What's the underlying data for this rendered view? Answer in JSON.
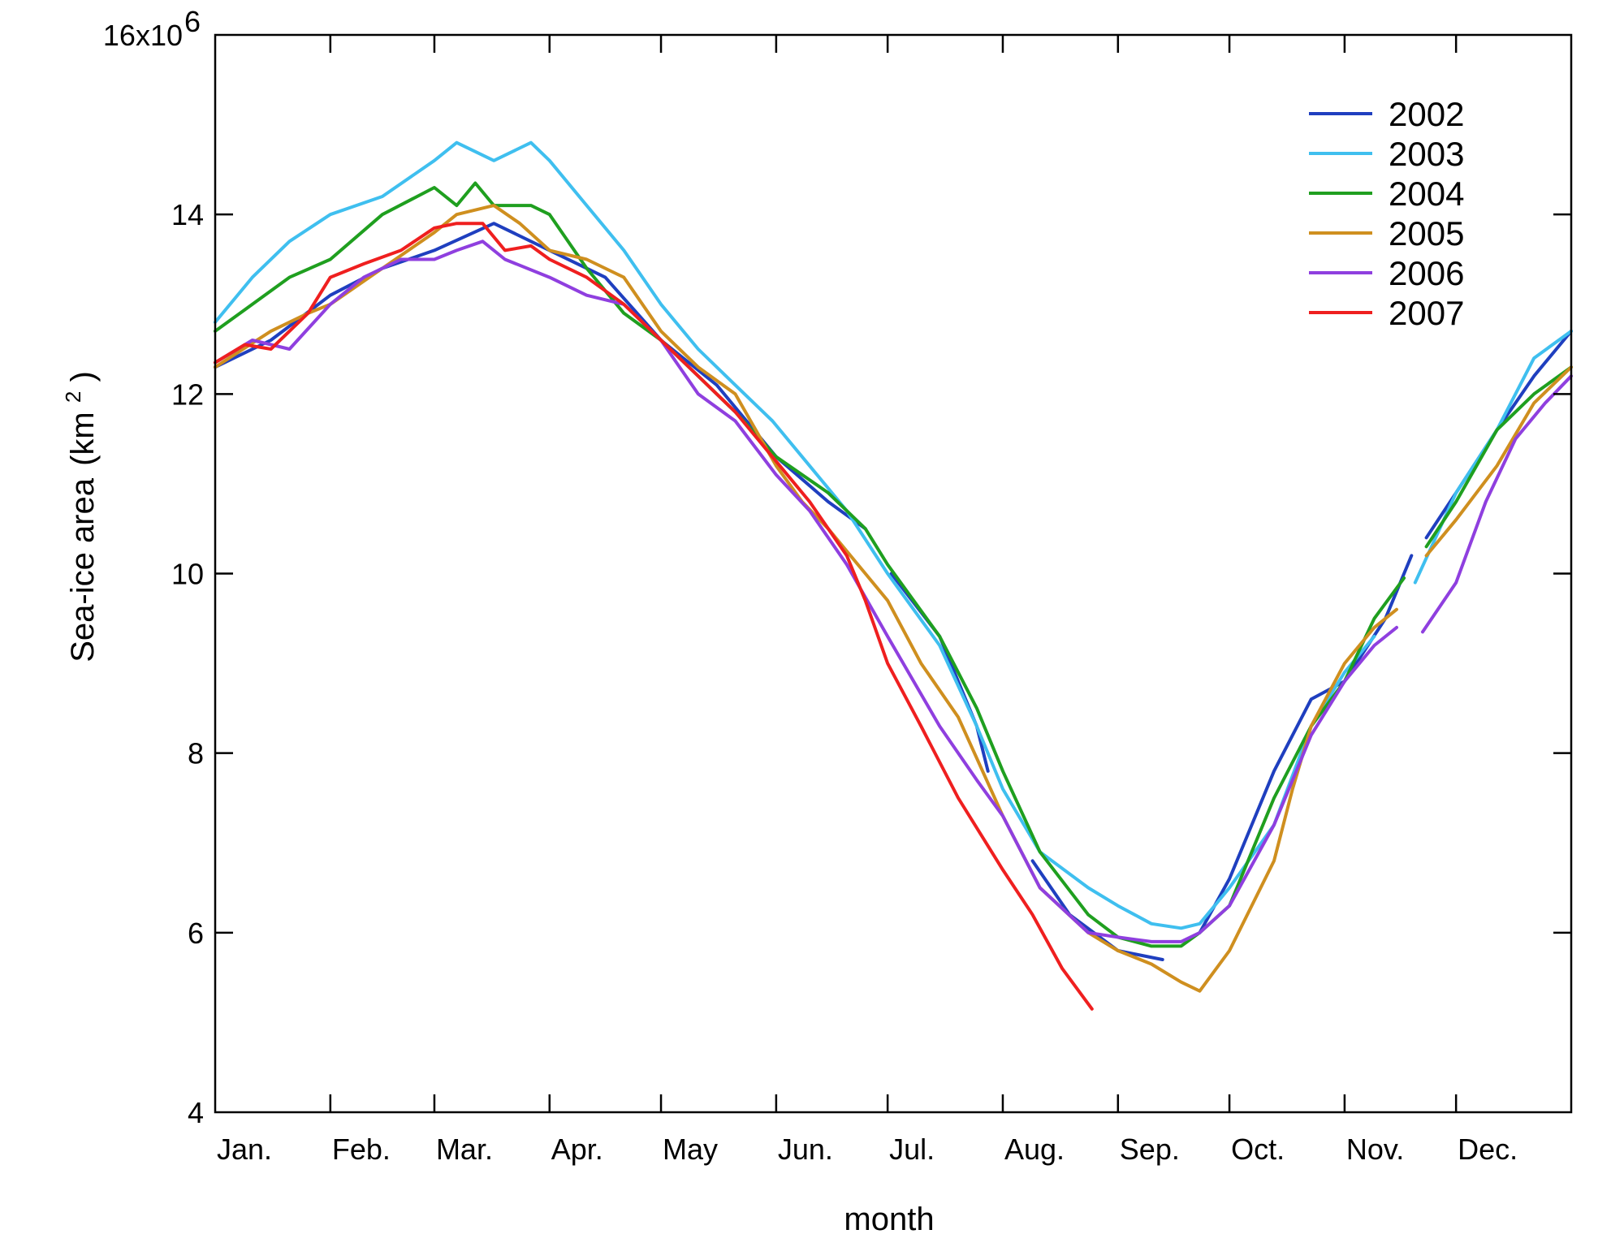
{
  "chart_data": {
    "type": "line",
    "xlabel": "month",
    "ylabel": "Sea-ice area",
    "ylabel_unit": "(km",
    "ylabel_unit_sup": "2",
    "ylabel_unit_close": ")",
    "x_tick_labels": [
      "Jan.",
      "Feb.",
      "Mar.",
      "Apr.",
      "May",
      "Jun.",
      "Jul.",
      "Aug.",
      "Sep.",
      "Oct.",
      "Nov.",
      "Dec."
    ],
    "x_domain_days": [
      0,
      365
    ],
    "x_tick_days": [
      0,
      31,
      59,
      90,
      120,
      151,
      181,
      212,
      243,
      273,
      304,
      334
    ],
    "ylim": [
      4000000,
      16000000
    ],
    "y_ticks": [
      4,
      6,
      8,
      10,
      12,
      14,
      16
    ],
    "y_tick_labels": [
      "4",
      "6",
      "8",
      "10",
      "12",
      "14",
      "16x10"
    ],
    "y_top_exponent": "6",
    "legend_position": "top-right",
    "series": [
      {
        "name": "2002",
        "color": "#1f3fbf",
        "segments": [
          [
            [
              0,
              12.3
            ],
            [
              15,
              12.6
            ],
            [
              31,
              13.1
            ],
            [
              45,
              13.4
            ],
            [
              59,
              13.6
            ],
            [
              75,
              13.9
            ],
            [
              90,
              13.6
            ],
            [
              105,
              13.3
            ],
            [
              120,
              12.6
            ],
            [
              135,
              12.1
            ],
            [
              151,
              11.3
            ],
            [
              165,
              10.8
            ],
            [
              175,
              10.5
            ]
          ],
          [
            [
              182,
              10.0
            ],
            [
              195,
              9.3
            ],
            [
              205,
              8.3
            ],
            [
              208,
              7.8
            ]
          ],
          [
            [
              220,
              6.8
            ],
            [
              230,
              6.2
            ],
            [
              243,
              5.8
            ],
            [
              255,
              5.7
            ]
          ],
          [
            [
              265,
              6.0
            ],
            [
              273,
              6.6
            ],
            [
              285,
              7.8
            ],
            [
              295,
              8.6
            ],
            [
              304,
              8.8
            ],
            [
              315,
              9.5
            ],
            [
              322,
              10.2
            ]
          ],
          [
            [
              326,
              10.4
            ],
            [
              334,
              10.9
            ],
            [
              345,
              11.6
            ],
            [
              355,
              12.2
            ],
            [
              365,
              12.7
            ]
          ]
        ]
      },
      {
        "name": "2003",
        "color": "#3fbfef",
        "segments": [
          [
            [
              0,
              12.8
            ],
            [
              10,
              13.3
            ],
            [
              20,
              13.7
            ],
            [
              31,
              14.0
            ],
            [
              45,
              14.2
            ],
            [
              59,
              14.6
            ],
            [
              65,
              14.8
            ],
            [
              75,
              14.6
            ],
            [
              85,
              14.8
            ],
            [
              90,
              14.6
            ],
            [
              100,
              14.1
            ],
            [
              110,
              13.6
            ],
            [
              120,
              13.0
            ],
            [
              130,
              12.5
            ],
            [
              140,
              12.1
            ],
            [
              150,
              11.7
            ],
            [
              160,
              11.2
            ],
            [
              170,
              10.7
            ],
            [
              181,
              10.0
            ],
            [
              195,
              9.2
            ],
            [
              205,
              8.3
            ],
            [
              212,
              7.6
            ],
            [
              222,
              6.9
            ],
            [
              235,
              6.5
            ],
            [
              243,
              6.3
            ],
            [
              252,
              6.1
            ],
            [
              260,
              6.05
            ],
            [
              265,
              6.1
            ],
            [
              273,
              6.5
            ],
            [
              285,
              7.2
            ],
            [
              295,
              8.3
            ],
            [
              304,
              8.9
            ],
            [
              312,
              9.3
            ]
          ],
          [
            [
              323,
              9.9
            ],
            [
              334,
              10.9
            ],
            [
              345,
              11.6
            ],
            [
              355,
              12.4
            ],
            [
              365,
              12.7
            ]
          ]
        ]
      },
      {
        "name": "2004",
        "color": "#1f9f1f",
        "segments": [
          [
            [
              0,
              12.7
            ],
            [
              10,
              13.0
            ],
            [
              20,
              13.3
            ],
            [
              31,
              13.5
            ],
            [
              45,
              14.0
            ],
            [
              59,
              14.3
            ],
            [
              65,
              14.1
            ],
            [
              70,
              14.35
            ],
            [
              75,
              14.1
            ],
            [
              85,
              14.1
            ],
            [
              90,
              14.0
            ],
            [
              100,
              13.4
            ],
            [
              110,
              12.9
            ],
            [
              120,
              12.6
            ],
            [
              130,
              12.2
            ],
            [
              140,
              11.8
            ],
            [
              151,
              11.3
            ],
            [
              165,
              10.9
            ],
            [
              175,
              10.5
            ],
            [
              181,
              10.1
            ],
            [
              195,
              9.3
            ],
            [
              205,
              8.5
            ],
            [
              212,
              7.8
            ],
            [
              222,
              6.9
            ],
            [
              235,
              6.2
            ],
            [
              243,
              5.95
            ],
            [
              252,
              5.85
            ],
            [
              260,
              5.85
            ],
            [
              265,
              6.0
            ],
            [
              273,
              6.3
            ],
            [
              285,
              7.5
            ],
            [
              295,
              8.3
            ],
            [
              304,
              8.8
            ],
            [
              312,
              9.5
            ],
            [
              320,
              9.95
            ]
          ],
          [
            [
              326,
              10.3
            ],
            [
              334,
              10.8
            ],
            [
              345,
              11.6
            ],
            [
              355,
              12.0
            ],
            [
              365,
              12.3
            ]
          ]
        ]
      },
      {
        "name": "2005",
        "color": "#cf8f1f",
        "segments": [
          [
            [
              0,
              12.3
            ],
            [
              15,
              12.7
            ],
            [
              25,
              12.9
            ],
            [
              31,
              13.0
            ],
            [
              45,
              13.4
            ],
            [
              59,
              13.8
            ],
            [
              65,
              14.0
            ],
            [
              75,
              14.1
            ],
            [
              82,
              13.9
            ],
            [
              90,
              13.6
            ],
            [
              100,
              13.5
            ],
            [
              110,
              13.3
            ],
            [
              120,
              12.7
            ],
            [
              130,
              12.3
            ],
            [
              140,
              12.0
            ],
            [
              151,
              11.2
            ],
            [
              158,
              10.8
            ],
            [
              165,
              10.5
            ],
            [
              175,
              10.0
            ],
            [
              181,
              9.7
            ],
            [
              190,
              9.0
            ],
            [
              200,
              8.4
            ],
            [
              212,
              7.3
            ],
            [
              222,
              6.5
            ],
            [
              235,
              6.0
            ],
            [
              243,
              5.8
            ],
            [
              252,
              5.65
            ],
            [
              260,
              5.45
            ],
            [
              265,
              5.35
            ],
            [
              273,
              5.8
            ],
            [
              285,
              6.8
            ],
            [
              290,
              7.6
            ],
            [
              295,
              8.3
            ],
            [
              304,
              9.0
            ],
            [
              312,
              9.4
            ],
            [
              318,
              9.6
            ]
          ],
          [
            [
              326,
              10.2
            ],
            [
              334,
              10.6
            ],
            [
              345,
              11.2
            ],
            [
              355,
              11.9
            ],
            [
              365,
              12.3
            ]
          ]
        ]
      },
      {
        "name": "2006",
        "color": "#8f3fdf",
        "segments": [
          [
            [
              0,
              12.35
            ],
            [
              10,
              12.6
            ],
            [
              20,
              12.5
            ],
            [
              31,
              13.0
            ],
            [
              40,
              13.3
            ],
            [
              50,
              13.5
            ],
            [
              59,
              13.5
            ],
            [
              65,
              13.6
            ],
            [
              72,
              13.7
            ],
            [
              78,
              13.5
            ],
            [
              90,
              13.3
            ],
            [
              100,
              13.1
            ],
            [
              110,
              13.0
            ],
            [
              120,
              12.6
            ],
            [
              130,
              12.0
            ],
            [
              140,
              11.7
            ],
            [
              151,
              11.1
            ],
            [
              160,
              10.7
            ],
            [
              170,
              10.1
            ],
            [
              181,
              9.3
            ],
            [
              195,
              8.3
            ],
            [
              205,
              7.7
            ],
            [
              212,
              7.3
            ],
            [
              222,
              6.5
            ],
            [
              235,
              6.0
            ],
            [
              243,
              5.95
            ],
            [
              252,
              5.9
            ],
            [
              260,
              5.9
            ],
            [
              265,
              6.0
            ],
            [
              273,
              6.3
            ],
            [
              285,
              7.2
            ],
            [
              295,
              8.2
            ],
            [
              304,
              8.8
            ],
            [
              312,
              9.2
            ],
            [
              318,
              9.4
            ]
          ],
          [
            [
              325,
              9.35
            ],
            [
              334,
              9.9
            ],
            [
              342,
              10.8
            ],
            [
              350,
              11.5
            ],
            [
              358,
              11.9
            ],
            [
              365,
              12.2
            ]
          ]
        ]
      },
      {
        "name": "2007",
        "color": "#ef1f1f",
        "segments": [
          [
            [
              0,
              12.35
            ],
            [
              8,
              12.55
            ],
            [
              15,
              12.5
            ],
            [
              25,
              12.9
            ],
            [
              31,
              13.3
            ],
            [
              40,
              13.45
            ],
            [
              50,
              13.6
            ],
            [
              59,
              13.85
            ],
            [
              65,
              13.9
            ],
            [
              72,
              13.9
            ],
            [
              78,
              13.6
            ],
            [
              85,
              13.65
            ],
            [
              90,
              13.5
            ],
            [
              100,
              13.3
            ],
            [
              110,
              13.0
            ],
            [
              120,
              12.6
            ],
            [
              130,
              12.2
            ],
            [
              140,
              11.8
            ],
            [
              151,
              11.25
            ],
            [
              160,
              10.8
            ],
            [
              170,
              10.2
            ],
            [
              175,
              9.7
            ],
            [
              181,
              9.0
            ],
            [
              190,
              8.3
            ],
            [
              200,
              7.5
            ],
            [
              212,
              6.7
            ],
            [
              220,
              6.2
            ],
            [
              228,
              5.6
            ],
            [
              236,
              5.15
            ]
          ]
        ]
      }
    ]
  }
}
